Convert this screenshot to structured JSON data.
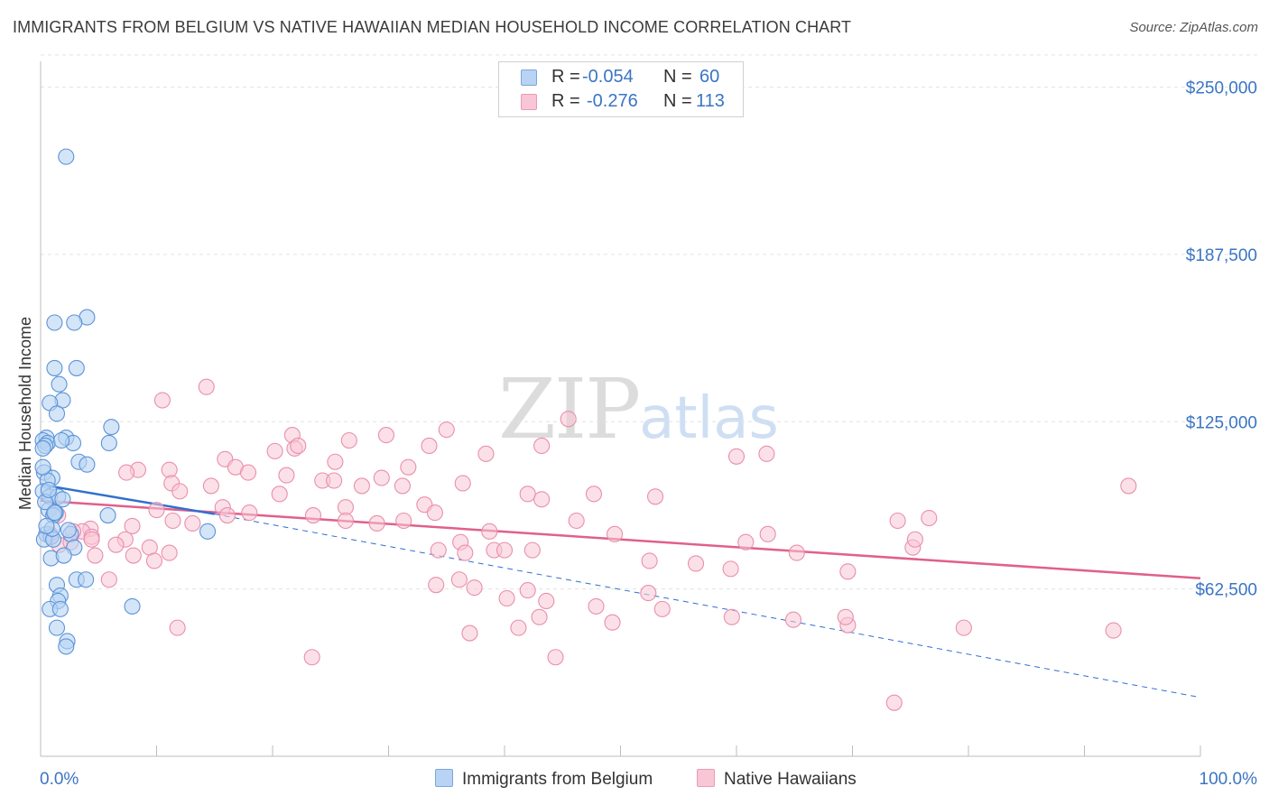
{
  "header": {
    "title": "IMMIGRANTS FROM BELGIUM VS NATIVE HAWAIIAN MEDIAN HOUSEHOLD INCOME CORRELATION CHART",
    "source": "Source: ZipAtlas.com"
  },
  "watermark": {
    "zip": "ZIP",
    "atlas": "atlas"
  },
  "legend": {
    "rows": [
      {
        "r_label": "R =",
        "r_value": "-0.054",
        "n_label": "N =",
        "n_value": "60"
      },
      {
        "r_label": "R =",
        "r_value": "-0.276",
        "n_label": "N =",
        "n_value": "113"
      }
    ]
  },
  "colors": {
    "blue_fill": "#b8d3f3",
    "blue_stroke": "#5b93d8",
    "blue_line": "#2f6fcf",
    "pink_fill": "#f9c6d6",
    "pink_stroke": "#e88fae",
    "pink_line": "#e0608c",
    "axis_text": "#3a75c4",
    "grid": "#e3e3e3"
  },
  "chart_data": {
    "type": "scatter",
    "title": "IMMIGRANTS FROM BELGIUM VS NATIVE HAWAIIAN MEDIAN HOUSEHOLD INCOME CORRELATION CHART",
    "xlabel": "",
    "ylabel": "Median Household Income",
    "x_tick_labels": [
      "0.0%",
      "100.0%"
    ],
    "y_tick_labels": [
      "$62,500",
      "$125,000",
      "$187,500",
      "$250,000"
    ],
    "y_ticks": [
      62500,
      125000,
      187500,
      250000
    ],
    "xlim": [
      0,
      100
    ],
    "ylim": [
      0,
      262000
    ],
    "series": [
      {
        "name": "Immigrants from Belgium",
        "color": "blue",
        "r": -0.054,
        "n": 60,
        "trend": {
          "x": [
            0,
            15
          ],
          "y": [
            101500,
            90500
          ]
        },
        "trend_dashed": {
          "x": [
            15,
            100
          ],
          "y": [
            90500,
            22000
          ]
        },
        "points": [
          [
            2.2,
            224000
          ],
          [
            4.0,
            164000
          ],
          [
            1.2,
            162000
          ],
          [
            2.9,
            162000
          ],
          [
            3.1,
            145000
          ],
          [
            1.2,
            145000
          ],
          [
            1.6,
            139000
          ],
          [
            1.9,
            133000
          ],
          [
            0.8,
            132000
          ],
          [
            1.4,
            128000
          ],
          [
            6.1,
            123000
          ],
          [
            0.5,
            119000
          ],
          [
            2.2,
            119000
          ],
          [
            0.2,
            118000
          ],
          [
            0.6,
            117000
          ],
          [
            2.8,
            117000
          ],
          [
            5.9,
            117000
          ],
          [
            0.4,
            116000
          ],
          [
            0.2,
            115000
          ],
          [
            3.3,
            110000
          ],
          [
            4.0,
            109000
          ],
          [
            0.3,
            106000
          ],
          [
            1.0,
            104000
          ],
          [
            0.6,
            103000
          ],
          [
            0.2,
            99000
          ],
          [
            0.8,
            97000
          ],
          [
            1.5,
            97000
          ],
          [
            1.9,
            96000
          ],
          [
            0.7,
            92000
          ],
          [
            1.3,
            91000
          ],
          [
            5.8,
            90000
          ],
          [
            1.1,
            90000
          ],
          [
            14.4,
            84000
          ],
          [
            0.5,
            83000
          ],
          [
            2.6,
            83000
          ],
          [
            0.9,
            82000
          ],
          [
            0.3,
            81000
          ],
          [
            1.1,
            81000
          ],
          [
            2.9,
            78000
          ],
          [
            0.9,
            74000
          ],
          [
            2.0,
            75000
          ],
          [
            3.1,
            66000
          ],
          [
            3.9,
            66000
          ],
          [
            1.4,
            64000
          ],
          [
            1.7,
            60000
          ],
          [
            1.5,
            58000
          ],
          [
            7.9,
            56000
          ],
          [
            0.8,
            55000
          ],
          [
            1.7,
            55000
          ],
          [
            1.4,
            48000
          ],
          [
            2.3,
            43000
          ],
          [
            2.2,
            41000
          ],
          [
            1.0,
            85000
          ],
          [
            0.4,
            95000
          ],
          [
            0.7,
            99500
          ],
          [
            1.8,
            118000
          ],
          [
            0.2,
            108000
          ],
          [
            0.5,
            86000
          ],
          [
            2.4,
            84500
          ],
          [
            1.2,
            91000
          ]
        ]
      },
      {
        "name": "Native Hawaiians",
        "color": "pink",
        "r": -0.276,
        "n": 113,
        "trend": {
          "x": [
            0,
            100
          ],
          "y": [
            95500,
            66500
          ]
        },
        "points": [
          [
            14.3,
            138000
          ],
          [
            10.5,
            133000
          ],
          [
            45.5,
            126000
          ],
          [
            35.0,
            122000
          ],
          [
            29.8,
            120000
          ],
          [
            21.7,
            120000
          ],
          [
            21.9,
            115000
          ],
          [
            33.5,
            116000
          ],
          [
            43.2,
            116000
          ],
          [
            26.6,
            118000
          ],
          [
            22.2,
            116000
          ],
          [
            20.2,
            114000
          ],
          [
            38.4,
            113000
          ],
          [
            62.6,
            113000
          ],
          [
            60.0,
            112000
          ],
          [
            15.9,
            111000
          ],
          [
            25.4,
            110000
          ],
          [
            16.8,
            108000
          ],
          [
            11.1,
            107000
          ],
          [
            31.7,
            108000
          ],
          [
            8.4,
            107000
          ],
          [
            17.9,
            106000
          ],
          [
            21.2,
            105000
          ],
          [
            7.4,
            106000
          ],
          [
            24.3,
            103000
          ],
          [
            27.7,
            101000
          ],
          [
            11.3,
            102000
          ],
          [
            29.4,
            104000
          ],
          [
            31.2,
            101000
          ],
          [
            14.7,
            101000
          ],
          [
            25.3,
            103000
          ],
          [
            36.4,
            102000
          ],
          [
            20.6,
            98000
          ],
          [
            12.0,
            99000
          ],
          [
            42.0,
            98000
          ],
          [
            47.7,
            98000
          ],
          [
            53.0,
            97000
          ],
          [
            43.2,
            96000
          ],
          [
            33.1,
            94000
          ],
          [
            26.3,
            93000
          ],
          [
            15.7,
            93000
          ],
          [
            10.0,
            92000
          ],
          [
            34.0,
            91000
          ],
          [
            18.0,
            91000
          ],
          [
            16.1,
            90000
          ],
          [
            23.5,
            90000
          ],
          [
            26.3,
            88000
          ],
          [
            29.0,
            87000
          ],
          [
            31.3,
            88000
          ],
          [
            46.2,
            88000
          ],
          [
            38.7,
            84000
          ],
          [
            73.9,
            88000
          ],
          [
            76.6,
            89000
          ],
          [
            13.1,
            87000
          ],
          [
            11.4,
            88000
          ],
          [
            7.9,
            86000
          ],
          [
            4.3,
            85000
          ],
          [
            3.6,
            84000
          ],
          [
            7.3,
            81000
          ],
          [
            36.2,
            80000
          ],
          [
            60.8,
            80000
          ],
          [
            49.5,
            83000
          ],
          [
            62.7,
            83000
          ],
          [
            2.8,
            84000
          ],
          [
            0.8,
            83000
          ],
          [
            4.4,
            82000
          ],
          [
            1.5,
            90000
          ],
          [
            1.6,
            79000
          ],
          [
            2.6,
            80000
          ],
          [
            4.7,
            75000
          ],
          [
            8.0,
            75000
          ],
          [
            4.4,
            81000
          ],
          [
            9.4,
            78000
          ],
          [
            9.8,
            73000
          ],
          [
            6.5,
            79000
          ],
          [
            11.1,
            76000
          ],
          [
            34.3,
            77000
          ],
          [
            36.6,
            76000
          ],
          [
            39.1,
            77000
          ],
          [
            40.0,
            77000
          ],
          [
            42.4,
            77000
          ],
          [
            52.5,
            73000
          ],
          [
            56.5,
            72000
          ],
          [
            59.5,
            70000
          ],
          [
            65.2,
            76000
          ],
          [
            69.6,
            69000
          ],
          [
            75.2,
            78000
          ],
          [
            52.4,
            61000
          ],
          [
            36.1,
            66000
          ],
          [
            42.0,
            62000
          ],
          [
            34.1,
            64000
          ],
          [
            37.4,
            63000
          ],
          [
            43.6,
            58000
          ],
          [
            40.2,
            59000
          ],
          [
            43.0,
            52000
          ],
          [
            47.9,
            56000
          ],
          [
            49.3,
            50000
          ],
          [
            53.6,
            55000
          ],
          [
            37.0,
            46000
          ],
          [
            41.2,
            48000
          ],
          [
            59.6,
            52000
          ],
          [
            64.9,
            51000
          ],
          [
            69.6,
            49000
          ],
          [
            79.6,
            48000
          ],
          [
            92.5,
            47000
          ],
          [
            11.8,
            48000
          ],
          [
            23.4,
            37000
          ],
          [
            44.4,
            37000
          ],
          [
            69.4,
            52000
          ],
          [
            75.4,
            81000
          ],
          [
            5.9,
            66000
          ],
          [
            93.8,
            101000
          ],
          [
            73.6,
            20000
          ]
        ]
      }
    ]
  },
  "bottom_legend": {
    "items": [
      {
        "label": "Immigrants from Belgium"
      },
      {
        "label": "Native Hawaiians"
      }
    ]
  }
}
